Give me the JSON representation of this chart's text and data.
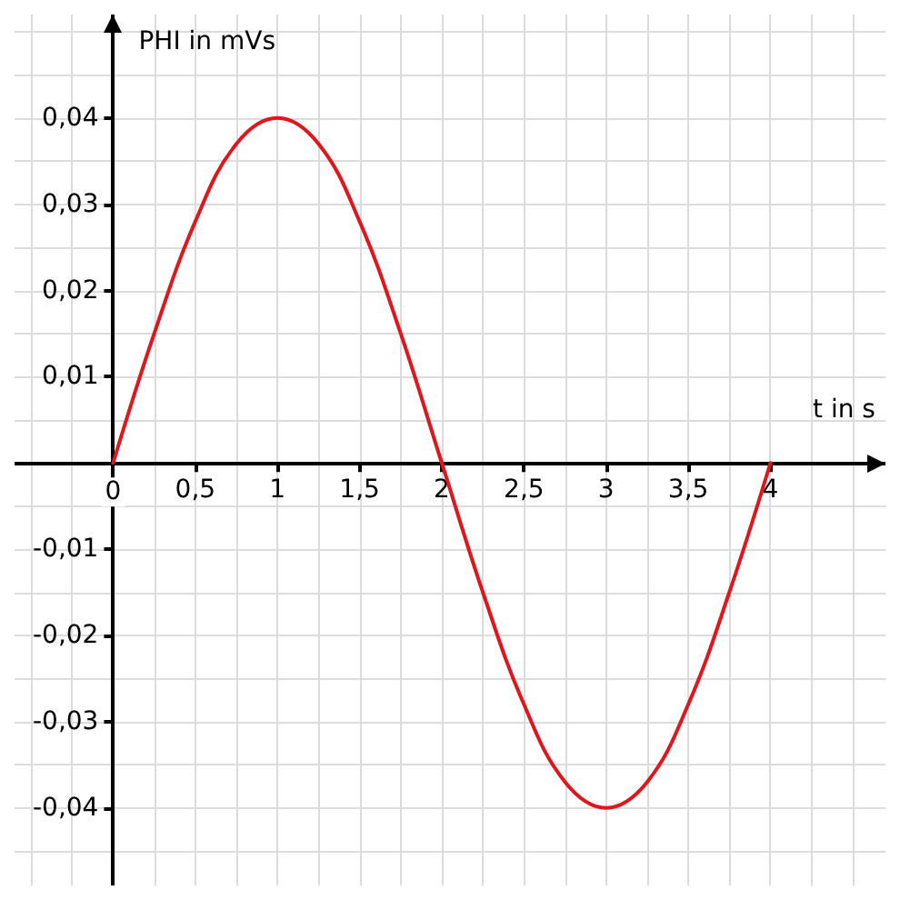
{
  "chart_data": {
    "type": "line",
    "xlabel": "t in s",
    "ylabel": "PHI in mVs",
    "x": [
      0,
      0.25,
      0.5,
      0.75,
      1,
      1.25,
      1.5,
      1.75,
      2,
      2.25,
      2.5,
      2.75,
      3,
      3.25,
      3.5,
      3.75,
      4
    ],
    "series": [
      {
        "color": "#e0161c",
        "values": [
          0,
          0.015,
          0.028,
          0.037,
          0.04,
          0.037,
          0.028,
          0.015,
          0,
          -0.015,
          -0.028,
          -0.037,
          -0.04,
          -0.037,
          -0.028,
          -0.015,
          0
        ]
      }
    ],
    "xlim": [
      -0.6,
      4.7
    ],
    "ylim": [
      -0.049,
      0.052
    ],
    "xticks": [
      {
        "value": 0,
        "label": "0"
      },
      {
        "value": 0.5,
        "label": "0,5"
      },
      {
        "value": 1,
        "label": "1"
      },
      {
        "value": 1.5,
        "label": "1,5"
      },
      {
        "value": 2,
        "label": "2"
      },
      {
        "value": 2.5,
        "label": "2,5"
      },
      {
        "value": 3,
        "label": "3"
      },
      {
        "value": 3.5,
        "label": "3,5"
      },
      {
        "value": 4,
        "label": "4"
      }
    ],
    "yticks": [
      {
        "value": -0.04,
        "label": "-0,04"
      },
      {
        "value": -0.03,
        "label": "-0,03"
      },
      {
        "value": -0.02,
        "label": "-0,02"
      },
      {
        "value": -0.01,
        "label": "-0,01"
      },
      {
        "value": 0.01,
        "label": "0,01"
      },
      {
        "value": 0.02,
        "label": "0,02"
      },
      {
        "value": 0.03,
        "label": "0,03"
      },
      {
        "value": 0.04,
        "label": "0,04"
      }
    ],
    "grid": true,
    "marker": "none",
    "line_style": "solid"
  }
}
